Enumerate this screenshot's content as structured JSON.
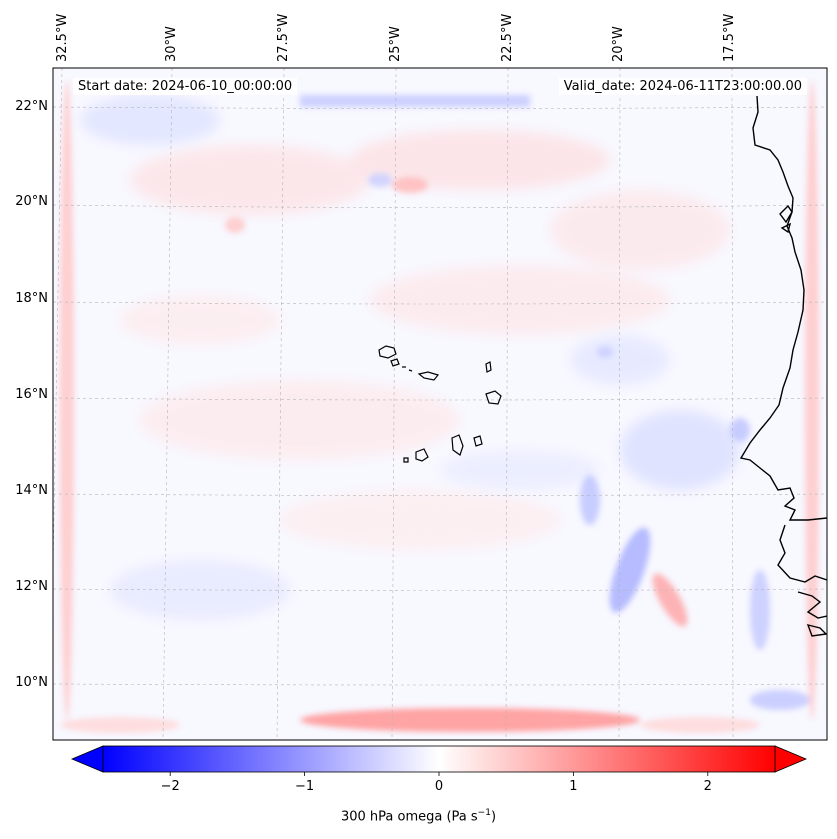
{
  "map": {
    "start_date_label": "Start date: 2024-06-10_00:00:00",
    "valid_date_label": "Valid_date: 2024-06-11T23:00:00.00",
    "lon_labels": [
      "32.5°W",
      "30°W",
      "27.5°W",
      "25°W",
      "22.5°W",
      "20°W",
      "17.5°W"
    ],
    "lat_labels": [
      "22°N",
      "20°N",
      "18°N",
      "16°N",
      "14°N",
      "12°N",
      "10°N"
    ],
    "colors": {
      "negative": "#0000ff",
      "positive": "#ff0000",
      "neutral": "#ffffff",
      "coast": "#000000",
      "grid": "#b0b0b0"
    }
  },
  "colorbar": {
    "ticks": [
      "−2",
      "−1",
      "0",
      "1",
      "2"
    ],
    "tick_values": [
      -2,
      -1,
      0,
      1,
      2
    ],
    "range": [
      -2.5,
      2.5
    ],
    "label_main": "300 hPa omega (Pa s",
    "label_sup": "−1",
    "label_end": ")"
  }
}
